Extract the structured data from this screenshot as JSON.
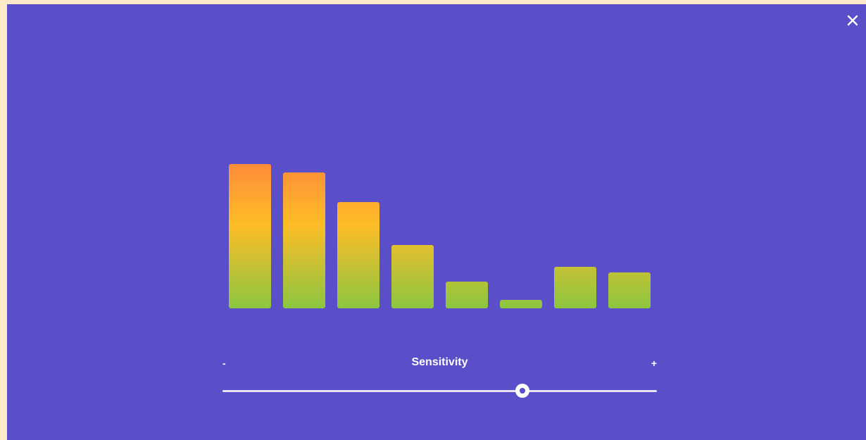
{
  "close": {
    "icon": "close-icon"
  },
  "colors": {
    "background": "#5a4fc9",
    "bar_top": "#ff8c3a",
    "bar_mid": "#fdbd27",
    "bar_bottom": "#8cc641",
    "track": "#e9e4f5"
  },
  "chart_data": {
    "type": "bar",
    "values": [
      205,
      193,
      151,
      90,
      38,
      12,
      59,
      51
    ],
    "ylim": [
      0,
      205
    ]
  },
  "sensitivity": {
    "label": "Sensitivity",
    "minus": "-",
    "plus": "+",
    "value": 0.69
  }
}
